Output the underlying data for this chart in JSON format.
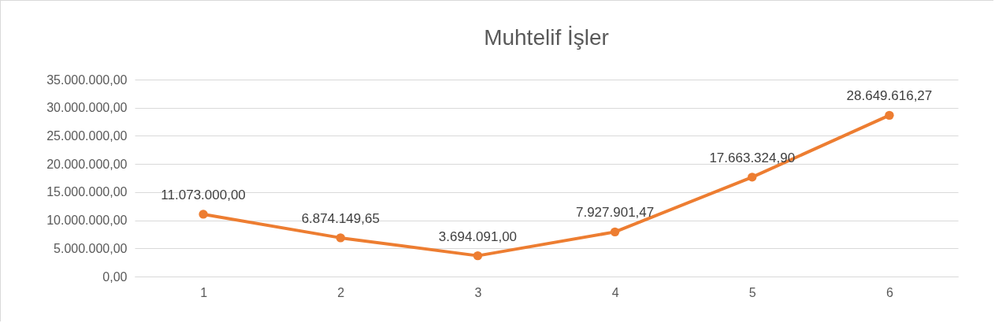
{
  "chart_data": {
    "type": "line",
    "title": "Muhtelif İşler",
    "categories": [
      "1",
      "2",
      "3",
      "4",
      "5",
      "6"
    ],
    "values": [
      11073000.0,
      6874149.65,
      3694091.0,
      7927901.47,
      17663324.9,
      28649616.27
    ],
    "value_labels": [
      "11.073.000,00",
      "6.874.149,65",
      "3.694.091,00",
      "7.927.901,47",
      "17.663.324,90",
      "28.649.616,27"
    ],
    "color": "#ed7d31",
    "ylim": [
      0,
      35000000
    ],
    "yticks": [
      {
        "value": 0,
        "label": "0,00"
      },
      {
        "value": 5000000,
        "label": "5.000.000,00"
      },
      {
        "value": 10000000,
        "label": "10.000.000,00"
      },
      {
        "value": 15000000,
        "label": "15.000.000,00"
      },
      {
        "value": 20000000,
        "label": "20.000.000,00"
      },
      {
        "value": 25000000,
        "label": "25.000.000,00"
      },
      {
        "value": 30000000,
        "label": "30.000.000,00"
      },
      {
        "value": 35000000,
        "label": "35.000.000,00"
      }
    ],
    "grid": "y",
    "marker": "circle",
    "line_style": "solid",
    "data_labels": true
  }
}
